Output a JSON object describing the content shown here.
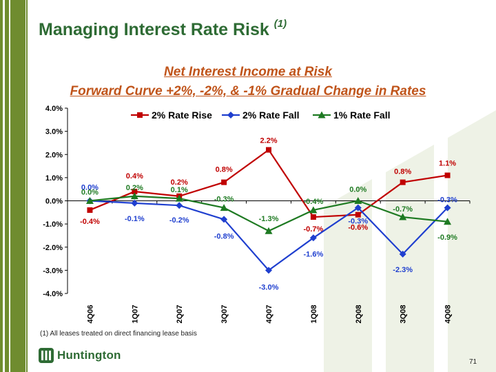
{
  "slide": {
    "title": "Managing Interest Rate Risk",
    "title_note": "(1)",
    "footnote": "(1)   All leases treated on direct financing lease basis",
    "logo_text": "Huntington",
    "page_number": "71",
    "colors": {
      "sidebar": "#6f8c2f",
      "title": "#2e6b34",
      "subtitle": "#c0541a",
      "watermark": "#eef2e6"
    }
  },
  "chart_data": {
    "type": "line",
    "title": "Net Interest Income at Risk",
    "subtitle": "Forward Curve +2%, -2%, & -1% Gradual Change in Rates",
    "categories": [
      "4Q06",
      "1Q07",
      "2Q07",
      "3Q07",
      "4Q07",
      "1Q08",
      "2Q08",
      "3Q08",
      "4Q08"
    ],
    "ylim": [
      -4.0,
      4.0
    ],
    "yticks": [
      4.0,
      3.0,
      2.0,
      1.0,
      0.0,
      -1.0,
      -2.0,
      -3.0,
      -4.0
    ],
    "ytick_labels": [
      "4.0%",
      "3.0%",
      "2.0%",
      "1.0%",
      "0.0%",
      "-1.0%",
      "-2.0%",
      "-3.0%",
      "-4.0%"
    ],
    "grid": false,
    "legend": "top",
    "series": [
      {
        "name": "2% Rate Rise",
        "color": "#c00000",
        "marker": "square",
        "values": [
          -0.4,
          0.4,
          0.2,
          0.8,
          2.2,
          -0.7,
          -0.6,
          0.8,
          1.1
        ],
        "labels": [
          "-0.4%",
          "0.4%",
          "0.2%",
          "0.8%",
          "2.2%",
          "-0.7%",
          "-0.6%",
          "0.8%",
          "1.1%"
        ]
      },
      {
        "name": "2% Rate Fall",
        "color": "#1f3fcf",
        "marker": "diamond",
        "values": [
          0.0,
          -0.1,
          -0.2,
          -0.8,
          -3.0,
          -1.6,
          -0.3,
          -2.3,
          -0.3
        ],
        "labels": [
          "0.0%",
          "-0.1%",
          "-0.2%",
          "-0.8%",
          "-3.0%",
          "-1.6%",
          "-0.3%",
          "-2.3%",
          "-0.3%"
        ]
      },
      {
        "name": "1% Rate Fall",
        "color": "#1e7a22",
        "marker": "triangle",
        "values": [
          0.0,
          0.2,
          0.1,
          -0.3,
          -1.3,
          -0.4,
          0.0,
          -0.7,
          -0.9
        ],
        "labels": [
          "0.0%",
          "0.2%",
          "0.1%",
          "-0.3%",
          "-1.3%",
          "-0.4%",
          "0.0%",
          "-0.7%",
          "-0.9%"
        ]
      }
    ]
  }
}
